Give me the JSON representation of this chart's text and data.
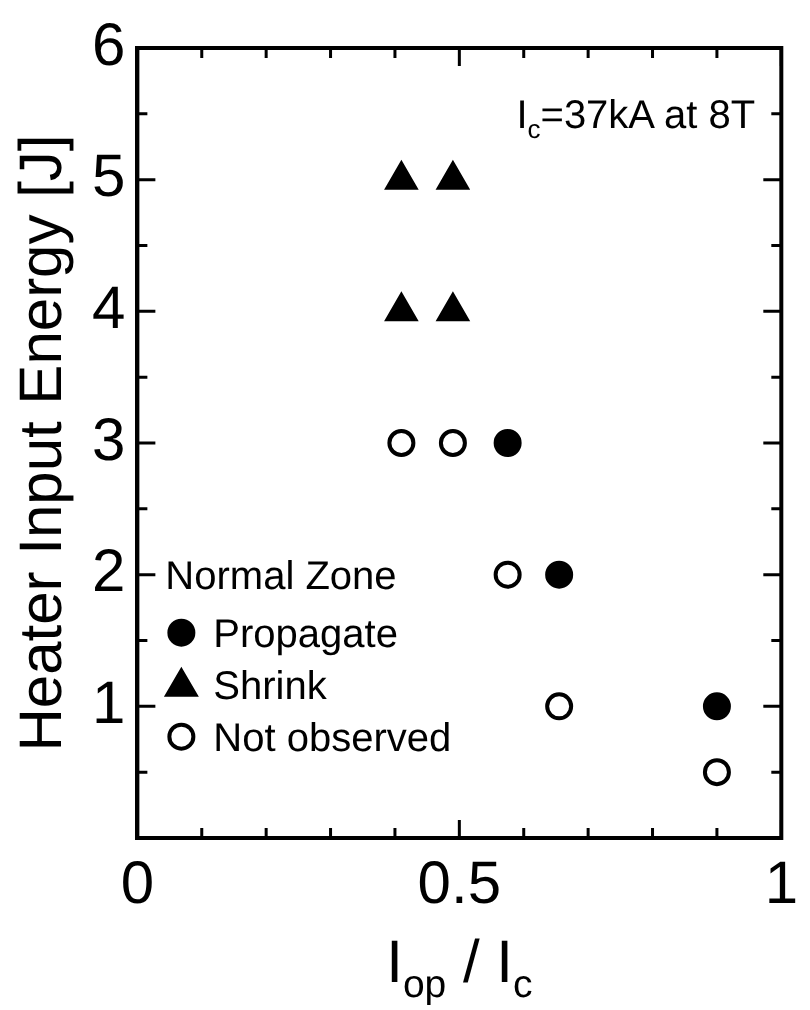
{
  "chart_data": {
    "type": "scatter",
    "xlabel": "I$_{op}$ / I$_{c}$",
    "ylabel": "Heater Input Energy [J]",
    "legend_title": "Normal Zone",
    "annotations": [
      "I$_{c}$=37kA at 8T"
    ],
    "xlim": [
      0,
      1
    ],
    "xticks": [
      0,
      {
        "value": 0.1,
        "label": null
      },
      {
        "value": 0.2,
        "label": null
      },
      {
        "value": 0.3,
        "label": null
      },
      {
        "value": 0.4,
        "label": null
      },
      0.5,
      {
        "value": 0.6,
        "label": null
      },
      {
        "value": 0.7,
        "label": null
      },
      {
        "value": 0.8,
        "label": null
      },
      {
        "value": 0.9,
        "label": null
      },
      1
    ],
    "ylim": [
      0,
      6
    ],
    "yticks": [
      {
        "value": 0.5,
        "label": null
      },
      1,
      {
        "value": 1.5,
        "label": null
      },
      2,
      {
        "value": 2.5,
        "label": null
      },
      3,
      {
        "value": 3.5,
        "label": null
      },
      4,
      {
        "value": 4.5,
        "label": null
      },
      5,
      {
        "value": 5.5,
        "label": null
      },
      6
    ],
    "grid": false,
    "legend": "left",
    "series": [
      {
        "name": "Propagate",
        "color": "#000000",
        "marker": "circle",
        "x": [
          0.575,
          0.655,
          0.9
        ],
        "values": [
          3,
          2,
          1
        ]
      },
      {
        "name": "Shrink",
        "color": "#000000",
        "marker": "triangle",
        "x": [
          0.41,
          0.49,
          0.41,
          0.49
        ],
        "values": [
          5,
          5,
          4,
          4
        ]
      },
      {
        "name": "Not observed",
        "color": "#ffffff",
        "marker": "circle",
        "x": [
          0.41,
          0.49,
          0.575,
          0.655,
          0.9
        ],
        "values": [
          3,
          3,
          2,
          1,
          0.5
        ]
      }
    ]
  }
}
